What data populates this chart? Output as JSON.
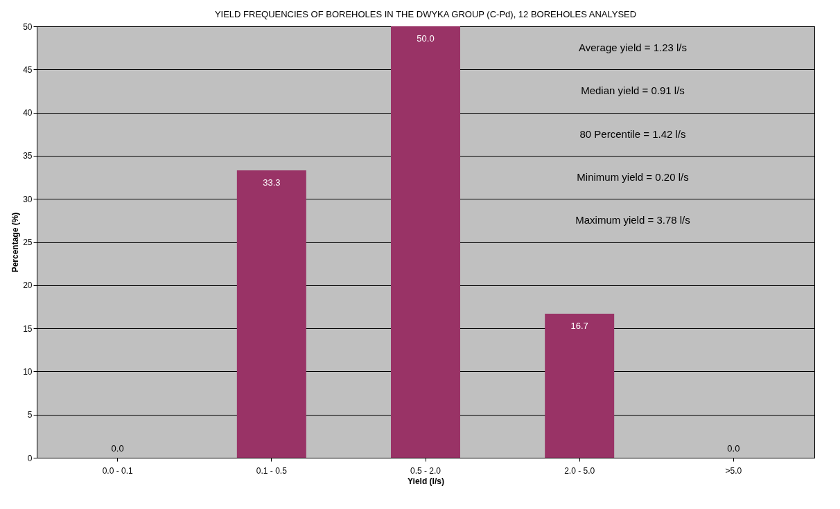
{
  "chart_data": {
    "type": "bar",
    "title": "YIELD FREQUENCIES OF BOREHOLES IN THE DWYKA GROUP (C-Pd), 12 BOREHOLES ANALYSED",
    "xlabel": "Yield (l/s)",
    "ylabel": "Percentage (%)",
    "categories": [
      "0.0 - 0.1",
      "0.1 - 0.5",
      "0.5 - 2.0",
      "2.0 - 5.0",
      ">5.0"
    ],
    "values": [
      0.0,
      33.3,
      50.0,
      16.7,
      0.0
    ],
    "color": "#993366",
    "ylim": [
      0,
      50
    ],
    "yticks": [
      0,
      5,
      10,
      15,
      20,
      25,
      30,
      35,
      40,
      45,
      50
    ],
    "grid": "y",
    "value_labels": [
      "0.0",
      "33.3",
      "50.0",
      "16.7",
      "0.0"
    ],
    "annotations": [
      "Average yield = 1.23 l/s",
      "Median yield = 0.91 l/s",
      "80 Percentile = 1.42 l/s",
      "Minimum yield = 0.20 l/s",
      "Maximum yield = 3.78 l/s"
    ]
  }
}
